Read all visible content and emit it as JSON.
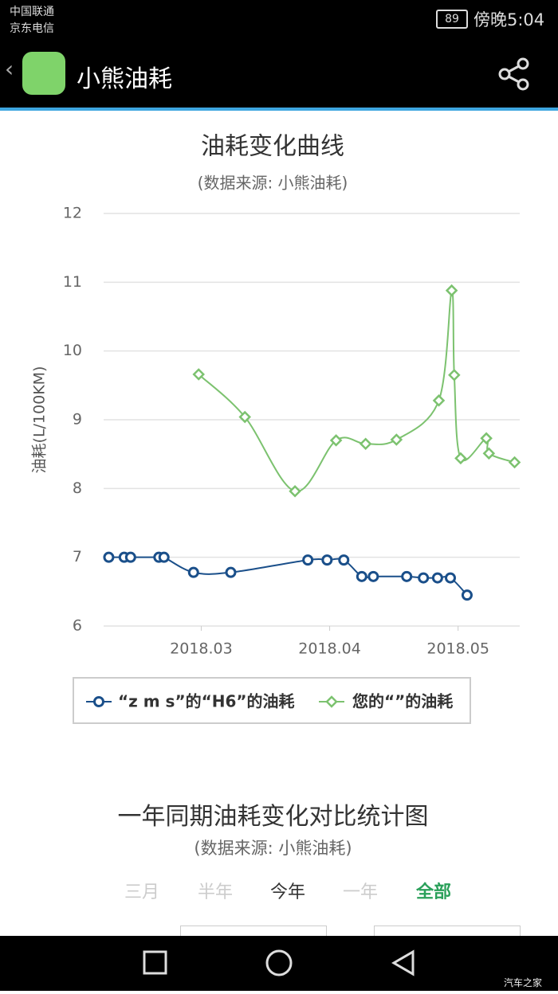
{
  "status_bar": {
    "carrier_1": "中国联通",
    "carrier_2": "京东电信",
    "battery": "89",
    "time": "傍晚5:04"
  },
  "app_bar": {
    "title": "小熊油耗"
  },
  "chart_data": {
    "type": "line",
    "title": "油耗变化曲线",
    "subtitle": "(数据来源: 小熊油耗)",
    "y_label": "油耗(L/100KM)",
    "xlim": [
      2.24,
      5.48
    ],
    "xticks": [
      {
        "value": 3,
        "label": "2018.03"
      },
      {
        "value": 4,
        "label": "2018.04"
      },
      {
        "value": 5,
        "label": "2018.05"
      }
    ],
    "ylim": [
      6,
      12
    ],
    "yticks": [
      6,
      7,
      8,
      9,
      10,
      11,
      12
    ],
    "grid": true,
    "series": [
      {
        "name": "“z m s”的“H6”的油耗",
        "color": "#1a4f8a",
        "marker": "circle",
        "x": [
          2.28,
          2.4,
          2.45,
          2.67,
          2.71,
          2.94,
          3.23,
          3.83,
          3.98,
          4.11,
          4.25,
          4.34,
          4.6,
          4.73,
          4.84,
          4.94,
          5.07
        ],
        "values": [
          7.0,
          7.0,
          7.0,
          7.0,
          7.0,
          6.78,
          6.78,
          6.96,
          6.96,
          6.96,
          6.72,
          6.72,
          6.72,
          6.7,
          6.7,
          6.7,
          6.45
        ]
      },
      {
        "name": "您的“”的油耗",
        "color": "#7cc26f",
        "marker": "diamond",
        "x": [
          2.98,
          3.34,
          3.73,
          4.05,
          4.28,
          4.52,
          4.85,
          4.95,
          4.97,
          5.02,
          5.22,
          5.24,
          5.44
        ],
        "values": [
          9.66,
          9.04,
          7.96,
          8.7,
          8.65,
          8.71,
          9.28,
          10.88,
          9.65,
          8.44,
          8.73,
          8.51,
          8.38
        ]
      }
    ]
  },
  "comparison": {
    "title": "一年同期油耗变化对比统计图",
    "subtitle": "(数据来源: 小熊油耗)",
    "tabs": [
      "三月",
      "半年",
      "今年",
      "一年",
      "全部"
    ]
  },
  "watermark": "汽车之家"
}
